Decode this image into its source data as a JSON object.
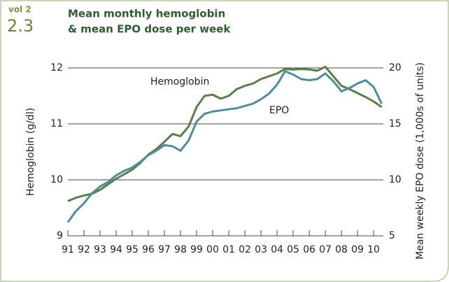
{
  "chart_data": {
    "type": "line",
    "volume": "vol 2",
    "figure": "2.3",
    "title": [
      "Mean monthly hemoglobin",
      "& mean EPO dose per week"
    ],
    "y_label": "Hemoglobin (g/dl)",
    "y2_label": "Mean weekly EPO dose (1,000s of units)",
    "x": [
      1991,
      1991.5,
      1992,
      1992.5,
      1993,
      1993.5,
      1994,
      1994.5,
      1995,
      1995.5,
      1996,
      1996.5,
      1997,
      1997.5,
      1998,
      1998.5,
      1999,
      1999.5,
      2000,
      2000.5,
      2001,
      2001.5,
      2002,
      2002.5,
      2003,
      2003.5,
      2004,
      2004.5,
      2005,
      2005.5,
      2006,
      2006.5,
      2007,
      2007.5,
      2008,
      2008.5,
      2009,
      2009.5,
      2010,
      2010.5
    ],
    "series": [
      {
        "name": "Hemoglobin",
        "color": "#5b7f47",
        "axis": "y",
        "values": [
          9.62,
          9.68,
          9.72,
          9.75,
          9.82,
          9.92,
          10.02,
          10.1,
          10.18,
          10.3,
          10.45,
          10.55,
          10.68,
          10.82,
          10.78,
          10.95,
          11.3,
          11.5,
          11.52,
          11.45,
          11.5,
          11.62,
          11.68,
          11.72,
          11.8,
          11.85,
          11.9,
          11.98,
          11.97,
          11.98,
          11.97,
          11.95,
          12.02,
          11.85,
          11.68,
          11.62,
          11.55,
          11.48,
          11.4,
          11.3
        ]
      },
      {
        "name": "EPO",
        "color": "#4d8d9c",
        "axis": "y2",
        "values": [
          6.2,
          7.2,
          7.9,
          8.8,
          9.4,
          9.8,
          10.4,
          10.8,
          11.1,
          11.6,
          12.2,
          12.6,
          13.1,
          13.0,
          12.6,
          13.5,
          15.2,
          15.9,
          16.1,
          16.2,
          16.3,
          16.4,
          16.6,
          16.8,
          17.2,
          17.7,
          18.5,
          19.7,
          19.4,
          19.0,
          18.9,
          19.0,
          19.5,
          18.8,
          17.9,
          18.2,
          18.6,
          18.9,
          18.3,
          16.8
        ]
      }
    ],
    "xlim": [
      1991,
      2010.6
    ],
    "xticks": [
      {
        "value": 1991,
        "label": "91"
      },
      {
        "value": 1992,
        "label": "92"
      },
      {
        "value": 1993,
        "label": "93"
      },
      {
        "value": 1994,
        "label": "94"
      },
      {
        "value": 1995,
        "label": "95"
      },
      {
        "value": 1996,
        "label": "96"
      },
      {
        "value": 1997,
        "label": "97"
      },
      {
        "value": 1998,
        "label": "98"
      },
      {
        "value": 1999,
        "label": "99"
      },
      {
        "value": 2000,
        "label": "00"
      },
      {
        "value": 2001,
        "label": "01"
      },
      {
        "value": 2002,
        "label": "02"
      },
      {
        "value": 2003,
        "label": "03"
      },
      {
        "value": 2004,
        "label": "04"
      },
      {
        "value": 2005,
        "label": "05"
      },
      {
        "value": 2006,
        "label": "06"
      },
      {
        "value": 2007,
        "label": "07"
      },
      {
        "value": 2008,
        "label": "08"
      },
      {
        "value": 2009,
        "label": "09"
      },
      {
        "value": 2010,
        "label": "10"
      }
    ],
    "ylim": [
      9,
      12
    ],
    "yticks": [
      9,
      10,
      11,
      12
    ],
    "y2lim": [
      5,
      20
    ],
    "y2ticks": [
      5,
      10,
      15,
      20
    ],
    "grid": true
  }
}
